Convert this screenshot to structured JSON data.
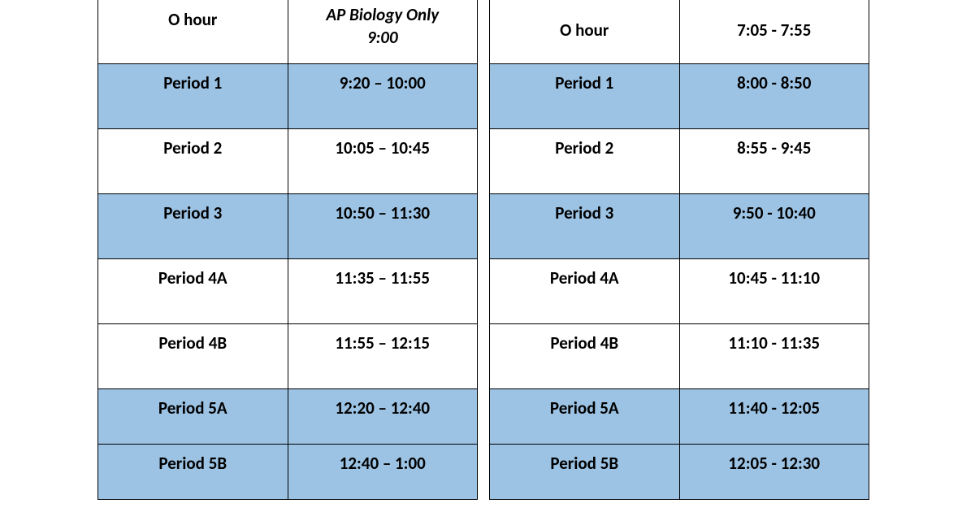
{
  "colors": {
    "row_blue": "#9cc3e4",
    "row_white": "#ffffff",
    "border": "#000000",
    "text": "#000000"
  },
  "left_table": {
    "rows": [
      {
        "label": "O hour",
        "time_line1": "AP Biology Only",
        "time_line2": "9:00",
        "bg": "white",
        "italic_time": true
      },
      {
        "label": "Period 1",
        "time": "9:20 – 10:00",
        "bg": "blue"
      },
      {
        "label": "Period 2",
        "time": "10:05 – 10:45",
        "bg": "white"
      },
      {
        "label": "Period 3",
        "time": "10:50 – 11:30",
        "bg": "blue"
      },
      {
        "label": "Period 4A",
        "time": "11:35 – 11:55",
        "bg": "white"
      },
      {
        "label": "Period 4B",
        "time": "11:55 – 12:15",
        "bg": "white"
      },
      {
        "label": "Period 5A",
        "time": "12:20 – 12:40",
        "bg": "blue"
      },
      {
        "label": "Period 5B",
        "time": "12:40 – 1:00",
        "bg": "blue"
      }
    ]
  },
  "right_table": {
    "rows": [
      {
        "label": "O hour",
        "time": "7:05 - 7:55",
        "bg": "white"
      },
      {
        "label": "Period 1",
        "time": "8:00 - 8:50",
        "bg": "blue"
      },
      {
        "label": "Period 2",
        "time": "8:55 - 9:45",
        "bg": "white"
      },
      {
        "label": "Period 3",
        "time": "9:50 - 10:40",
        "bg": "blue"
      },
      {
        "label": "Period 4A",
        "time": "10:45 - 11:10",
        "bg": "white"
      },
      {
        "label": "Period 4B",
        "time": "11:10 - 11:35",
        "bg": "white"
      },
      {
        "label": "Period 5A",
        "time": "11:40 - 12:05",
        "bg": "blue"
      },
      {
        "label": "Period 5B",
        "time": "12:05 - 12:30",
        "bg": "blue"
      }
    ]
  }
}
